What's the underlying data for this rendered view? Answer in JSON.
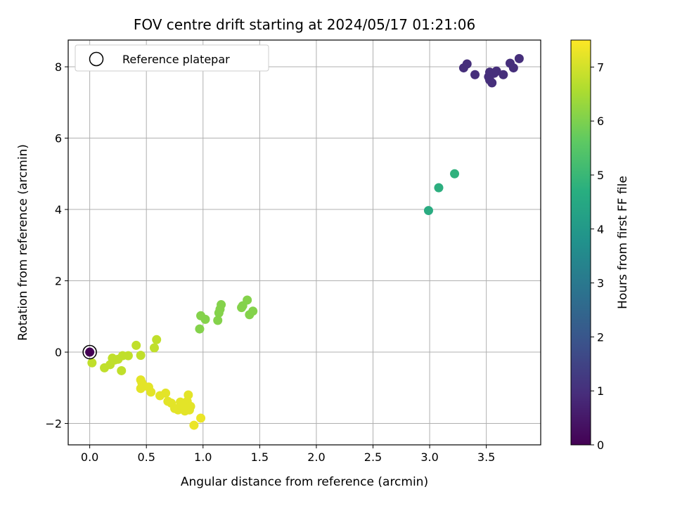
{
  "chart_data": {
    "type": "scatter",
    "title": "FOV centre drift starting at 2024/05/17 01:21:06",
    "xlabel": "Angular distance from reference (arcmin)",
    "ylabel": "Rotation from reference (arcmin)",
    "xlim": [
      -0.19,
      3.98
    ],
    "ylim": [
      -2.6,
      8.75
    ],
    "xticks": [
      0.0,
      0.5,
      1.0,
      1.5,
      2.0,
      2.5,
      3.0,
      3.5
    ],
    "xtick_labels": [
      "0.0",
      "0.5",
      "1.0",
      "1.5",
      "2.0",
      "2.5",
      "3.0",
      "3.5"
    ],
    "yticks": [
      -2,
      0,
      2,
      4,
      6,
      8
    ],
    "ytick_labels": [
      "−2",
      "0",
      "2",
      "4",
      "6",
      "8"
    ],
    "grid": true,
    "legend": {
      "position": "top-left",
      "entries": [
        {
          "label": "Reference platepar",
          "marker": "open-circle"
        }
      ]
    },
    "colorbar": {
      "label": "Hours from first FF file",
      "colormap": "viridis",
      "range": [
        0,
        7.5
      ],
      "ticks": [
        0,
        1,
        2,
        3,
        4,
        5,
        6,
        7
      ],
      "tick_labels": [
        "0",
        "1",
        "2",
        "3",
        "4",
        "5",
        "6",
        "7"
      ]
    },
    "reference_point": {
      "x": 0.0,
      "y": 0.0,
      "hours": 0.0
    },
    "points": [
      {
        "x": 3.3,
        "y": 7.97,
        "hours": 1.0
      },
      {
        "x": 3.33,
        "y": 8.08,
        "hours": 1.0
      },
      {
        "x": 3.4,
        "y": 7.78,
        "hours": 1.0
      },
      {
        "x": 3.52,
        "y": 7.72,
        "hours": 1.0
      },
      {
        "x": 3.53,
        "y": 7.85,
        "hours": 1.0
      },
      {
        "x": 3.53,
        "y": 7.63,
        "hours": 1.0
      },
      {
        "x": 3.55,
        "y": 7.55,
        "hours": 1.0
      },
      {
        "x": 3.57,
        "y": 7.82,
        "hours": 1.0
      },
      {
        "x": 3.59,
        "y": 7.88,
        "hours": 1.0
      },
      {
        "x": 3.65,
        "y": 7.78,
        "hours": 1.0
      },
      {
        "x": 3.71,
        "y": 8.1,
        "hours": 1.0
      },
      {
        "x": 3.74,
        "y": 7.97,
        "hours": 1.0
      },
      {
        "x": 3.79,
        "y": 8.23,
        "hours": 1.0
      },
      {
        "x": 2.99,
        "y": 3.97,
        "hours": 4.6
      },
      {
        "x": 3.08,
        "y": 4.61,
        "hours": 4.7
      },
      {
        "x": 3.22,
        "y": 5.0,
        "hours": 4.8
      },
      {
        "x": 0.97,
        "y": 0.65,
        "hours": 6.1
      },
      {
        "x": 0.98,
        "y": 1.02,
        "hours": 6.1
      },
      {
        "x": 1.02,
        "y": 0.92,
        "hours": 6.1
      },
      {
        "x": 1.13,
        "y": 0.89,
        "hours": 6.1
      },
      {
        "x": 1.14,
        "y": 1.1,
        "hours": 6.1
      },
      {
        "x": 1.15,
        "y": 1.2,
        "hours": 6.1
      },
      {
        "x": 1.16,
        "y": 1.33,
        "hours": 6.1
      },
      {
        "x": 1.34,
        "y": 1.25,
        "hours": 6.1
      },
      {
        "x": 1.35,
        "y": 1.3,
        "hours": 6.1
      },
      {
        "x": 1.39,
        "y": 1.46,
        "hours": 6.1
      },
      {
        "x": 1.41,
        "y": 1.05,
        "hours": 6.1
      },
      {
        "x": 1.44,
        "y": 1.15,
        "hours": 6.1
      },
      {
        "x": 0.02,
        "y": -0.3,
        "hours": 6.8
      },
      {
        "x": 0.13,
        "y": -0.44,
        "hours": 6.8
      },
      {
        "x": 0.18,
        "y": -0.35,
        "hours": 6.8
      },
      {
        "x": 0.2,
        "y": -0.17,
        "hours": 6.8
      },
      {
        "x": 0.22,
        "y": -0.22,
        "hours": 6.8
      },
      {
        "x": 0.25,
        "y": -0.2,
        "hours": 6.8
      },
      {
        "x": 0.28,
        "y": -0.52,
        "hours": 6.8
      },
      {
        "x": 0.29,
        "y": -0.1,
        "hours": 6.8
      },
      {
        "x": 0.34,
        "y": -0.1,
        "hours": 6.8
      },
      {
        "x": 0.41,
        "y": 0.19,
        "hours": 6.8
      },
      {
        "x": 0.45,
        "y": -0.09,
        "hours": 6.8
      },
      {
        "x": 0.57,
        "y": 0.12,
        "hours": 6.8
      },
      {
        "x": 0.59,
        "y": 0.35,
        "hours": 6.8
      },
      {
        "x": 0.45,
        "y": -0.78,
        "hours": 7.2
      },
      {
        "x": 0.45,
        "y": -1.02,
        "hours": 7.2
      },
      {
        "x": 0.46,
        "y": -0.86,
        "hours": 7.2
      },
      {
        "x": 0.48,
        "y": -0.95,
        "hours": 7.2
      },
      {
        "x": 0.52,
        "y": -0.98,
        "hours": 7.2
      },
      {
        "x": 0.54,
        "y": -1.12,
        "hours": 7.2
      },
      {
        "x": 0.62,
        "y": -1.22,
        "hours": 7.2
      },
      {
        "x": 0.67,
        "y": -1.15,
        "hours": 7.2
      },
      {
        "x": 0.69,
        "y": -1.38,
        "hours": 7.2
      },
      {
        "x": 0.72,
        "y": -1.43,
        "hours": 7.2
      },
      {
        "x": 0.75,
        "y": -1.58,
        "hours": 7.2
      },
      {
        "x": 0.78,
        "y": -1.62,
        "hours": 7.2
      },
      {
        "x": 0.8,
        "y": -1.4,
        "hours": 7.2
      },
      {
        "x": 0.81,
        "y": -1.52,
        "hours": 7.2
      },
      {
        "x": 0.83,
        "y": -1.45,
        "hours": 7.2
      },
      {
        "x": 0.84,
        "y": -1.65,
        "hours": 7.2
      },
      {
        "x": 0.86,
        "y": -1.38,
        "hours": 7.2
      },
      {
        "x": 0.87,
        "y": -1.2,
        "hours": 7.2
      },
      {
        "x": 0.88,
        "y": -1.62,
        "hours": 7.2
      },
      {
        "x": 0.89,
        "y": -1.52,
        "hours": 7.2
      },
      {
        "x": 0.92,
        "y": -2.05,
        "hours": 7.3
      },
      {
        "x": 0.98,
        "y": -1.85,
        "hours": 7.3
      }
    ]
  }
}
